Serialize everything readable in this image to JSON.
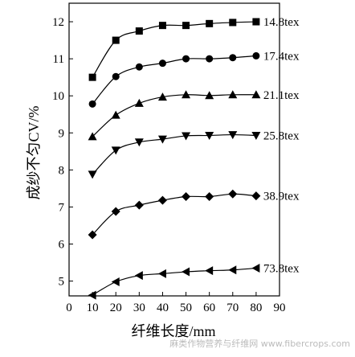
{
  "chart_data": {
    "type": "line",
    "title": "",
    "xlabel": "纤维长度/mm",
    "ylabel": "成纱不匀CV/%",
    "xlim": [
      0,
      90
    ],
    "ylim": [
      4.6,
      12.5
    ],
    "x_ticks": [
      0,
      10,
      20,
      30,
      40,
      50,
      60,
      70,
      80,
      90
    ],
    "y_ticks": [
      5,
      6,
      7,
      8,
      9,
      10,
      11,
      12
    ],
    "x": [
      10,
      20,
      30,
      40,
      50,
      60,
      70,
      80
    ],
    "grid": false,
    "series": [
      {
        "name": "14.8tex",
        "marker": "square",
        "values": [
          10.5,
          11.5,
          11.75,
          11.9,
          11.9,
          11.95,
          11.98,
          12.0
        ]
      },
      {
        "name": "17.4tex",
        "marker": "circle",
        "values": [
          9.78,
          10.52,
          10.78,
          10.88,
          11.0,
          11.0,
          11.03,
          11.08
        ]
      },
      {
        "name": "21.1tex",
        "marker": "triangle-up",
        "values": [
          8.9,
          9.48,
          9.8,
          9.97,
          10.03,
          10.01,
          10.03,
          10.03
        ]
      },
      {
        "name": "25.8tex",
        "marker": "triangle-down",
        "values": [
          7.88,
          8.53,
          8.75,
          8.83,
          8.92,
          8.93,
          8.95,
          8.93
        ]
      },
      {
        "name": "38.9tex",
        "marker": "diamond",
        "values": [
          6.25,
          6.88,
          7.05,
          7.18,
          7.28,
          7.28,
          7.35,
          7.3
        ]
      },
      {
        "name": "73.8tex",
        "marker": "triangle-left",
        "values": [
          4.62,
          4.98,
          5.15,
          5.2,
          5.25,
          5.28,
          5.3,
          5.35
        ]
      }
    ]
  },
  "watermark": {
    "text": "麻类作物营养与纤维网 www.fibercrops.com"
  }
}
